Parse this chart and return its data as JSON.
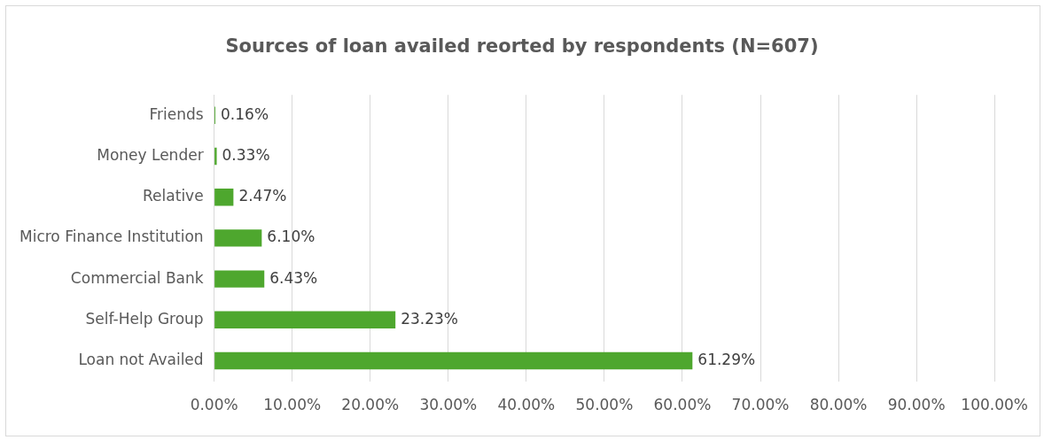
{
  "chart_data": {
    "type": "bar",
    "orientation": "horizontal",
    "title": "Sources of loan availed reorted by respondents (N=607)",
    "categories": [
      "Friends",
      "Money Lender",
      "Relative",
      "Micro Finance Institution",
      "Commercial Bank",
      "Self-Help Group",
      "Loan not Availed"
    ],
    "values": [
      0.16,
      0.33,
      2.47,
      6.1,
      6.43,
      23.23,
      61.29
    ],
    "value_labels": [
      "0.16%",
      "0.33%",
      "2.47%",
      "6.10%",
      "6.43%",
      "23.23%",
      "61.29%"
    ],
    "color": "#4ea72e",
    "xlim": [
      0,
      100
    ],
    "xticks": [
      {
        "value": 0,
        "label": "0.00%"
      },
      {
        "value": 10,
        "label": "10.00%"
      },
      {
        "value": 20,
        "label": "20.00%"
      },
      {
        "value": 30,
        "label": "30.00%"
      },
      {
        "value": 40,
        "label": "40.00%"
      },
      {
        "value": 50,
        "label": "50.00%"
      },
      {
        "value": 60,
        "label": "60.00%"
      },
      {
        "value": 70,
        "label": "70.00%"
      },
      {
        "value": 80,
        "label": "80.00%"
      },
      {
        "value": 90,
        "label": "90.00%"
      },
      {
        "value": 100,
        "label": "100.00%"
      }
    ],
    "grid": "x"
  }
}
